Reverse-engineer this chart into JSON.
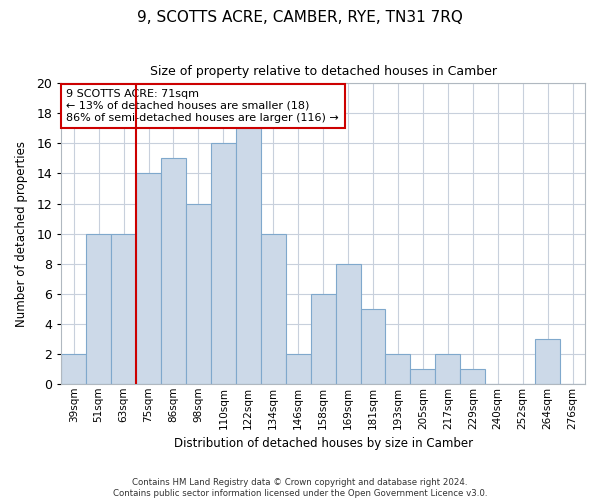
{
  "title": "9, SCOTTS ACRE, CAMBER, RYE, TN31 7RQ",
  "subtitle": "Size of property relative to detached houses in Camber",
  "xlabel": "Distribution of detached houses by size in Camber",
  "ylabel": "Number of detached properties",
  "bin_labels": [
    "39sqm",
    "51sqm",
    "63sqm",
    "75sqm",
    "86sqm",
    "98sqm",
    "110sqm",
    "122sqm",
    "134sqm",
    "146sqm",
    "158sqm",
    "169sqm",
    "181sqm",
    "193sqm",
    "205sqm",
    "217sqm",
    "229sqm",
    "240sqm",
    "252sqm",
    "264sqm",
    "276sqm"
  ],
  "bar_heights": [
    2,
    10,
    10,
    14,
    15,
    12,
    16,
    17,
    10,
    2,
    6,
    8,
    5,
    2,
    1,
    2,
    1,
    0,
    0,
    3,
    0
  ],
  "bar_color": "#ccd9e8",
  "bar_edge_color": "#7fa8cc",
  "highlight_line_index": 2,
  "highlight_line_color": "#cc0000",
  "ylim": [
    0,
    20
  ],
  "yticks": [
    0,
    2,
    4,
    6,
    8,
    10,
    12,
    14,
    16,
    18,
    20
  ],
  "annotation_title": "9 SCOTTS ACRE: 71sqm",
  "annotation_line1": "← 13% of detached houses are smaller (18)",
  "annotation_line2": "86% of semi-detached houses are larger (116) →",
  "annotation_box_color": "#ffffff",
  "annotation_box_edge": "#cc0000",
  "footer_line1": "Contains HM Land Registry data © Crown copyright and database right 2024.",
  "footer_line2": "Contains public sector information licensed under the Open Government Licence v3.0.",
  "background_color": "#ffffff",
  "grid_color": "#c8d0dc"
}
